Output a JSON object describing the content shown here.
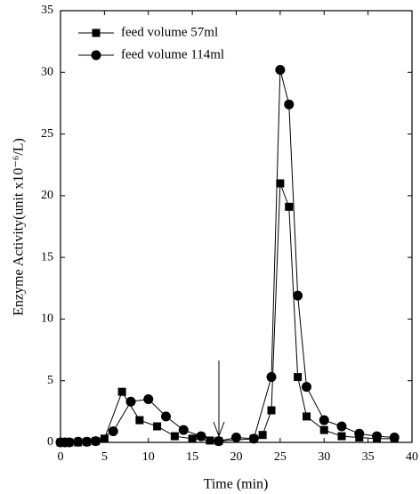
{
  "chart_data": {
    "type": "line",
    "xlabel": "Time (min)",
    "ylabel": "Enzyme Activity(unit x10⁻⁶/L)",
    "xlim": [
      0,
      40
    ],
    "xticks": [
      0,
      5,
      10,
      15,
      20,
      25,
      30,
      35,
      40
    ],
    "ylim": [
      0,
      35
    ],
    "yticks": [
      0,
      5,
      10,
      15,
      20,
      25,
      30,
      35
    ],
    "legend": "upper left",
    "series": [
      {
        "name": "feed volume 57ml",
        "color": "#000000",
        "marker": "square",
        "x": [
          0,
          0.5,
          1,
          2,
          3,
          4,
          5,
          7,
          9,
          11,
          13,
          15,
          17,
          18,
          22,
          23,
          24,
          25,
          26,
          27,
          28,
          30,
          32,
          34,
          36,
          38
        ],
        "values": [
          0,
          0,
          0,
          0,
          0.05,
          0.1,
          0.3,
          4.1,
          1.8,
          1.3,
          0.5,
          0.3,
          0.15,
          0.1,
          0.3,
          0.6,
          2.6,
          21,
          19.1,
          5.3,
          2.1,
          1.0,
          0.5,
          0.4,
          0.3,
          0.3
        ]
      },
      {
        "name": "feed volume 114ml",
        "color": "#000000",
        "marker": "circle",
        "x": [
          0,
          0.5,
          1,
          2,
          3,
          4,
          6,
          8,
          10,
          12,
          14,
          16,
          18,
          20,
          22,
          24,
          25,
          26,
          27,
          28,
          30,
          32,
          34,
          36,
          38
        ],
        "values": [
          0,
          0,
          0,
          0.05,
          0.05,
          0.1,
          0.9,
          3.3,
          3.5,
          2.1,
          1.0,
          0.5,
          0.1,
          0.4,
          0.3,
          5.3,
          30.2,
          27.4,
          11.9,
          4.5,
          1.8,
          1.3,
          0.7,
          0.5,
          0.4
        ]
      }
    ]
  }
}
